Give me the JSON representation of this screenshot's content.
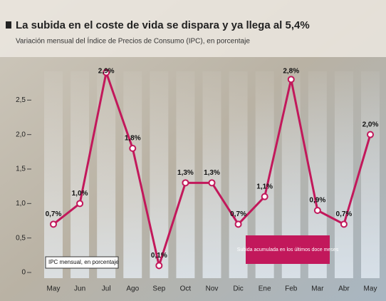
{
  "chart_data": {
    "type": "line",
    "title": "La subida en el coste de vida se dispara y ya llega al 5,4%",
    "subtitle": "Variación mensual del Índice de Precios de Consumo (IPC), en porcentaje",
    "categories": [
      "May",
      "Jun",
      "Jul",
      "Ago",
      "Sep",
      "Oct",
      "Nov",
      "Dic",
      "Ene",
      "Feb",
      "Mar",
      "Abr",
      "May"
    ],
    "series": [
      {
        "name": "IPC mensual, en porcentaje",
        "color": "#c2185b",
        "values": [
          0.7,
          1.0,
          2.9,
          1.8,
          0.1,
          1.3,
          1.3,
          0.7,
          1.1,
          2.8,
          0.9,
          0.7,
          2.0
        ],
        "value_labels": [
          "0,7%",
          "1,0%",
          "2,9%",
          "1,8%",
          "0,1%",
          "1,3%",
          "1,3%",
          "0,7%",
          "1,1%",
          "2,8%",
          "0,9%",
          "0,7%",
          "2,0%"
        ]
      }
    ],
    "annotation": "Subida acumulada en los últimos doce meses",
    "ylim": [
      0,
      3
    ],
    "yticks": [
      0,
      {
        "value": 0.5,
        "label": "0,5"
      },
      {
        "value": 1,
        "label": "1,0"
      },
      {
        "value": 1.5,
        "label": "1,5"
      },
      {
        "value": 2,
        "label": "2,0"
      },
      {
        "value": 2.5,
        "label": "2,5"
      }
    ],
    "grid": false
  }
}
